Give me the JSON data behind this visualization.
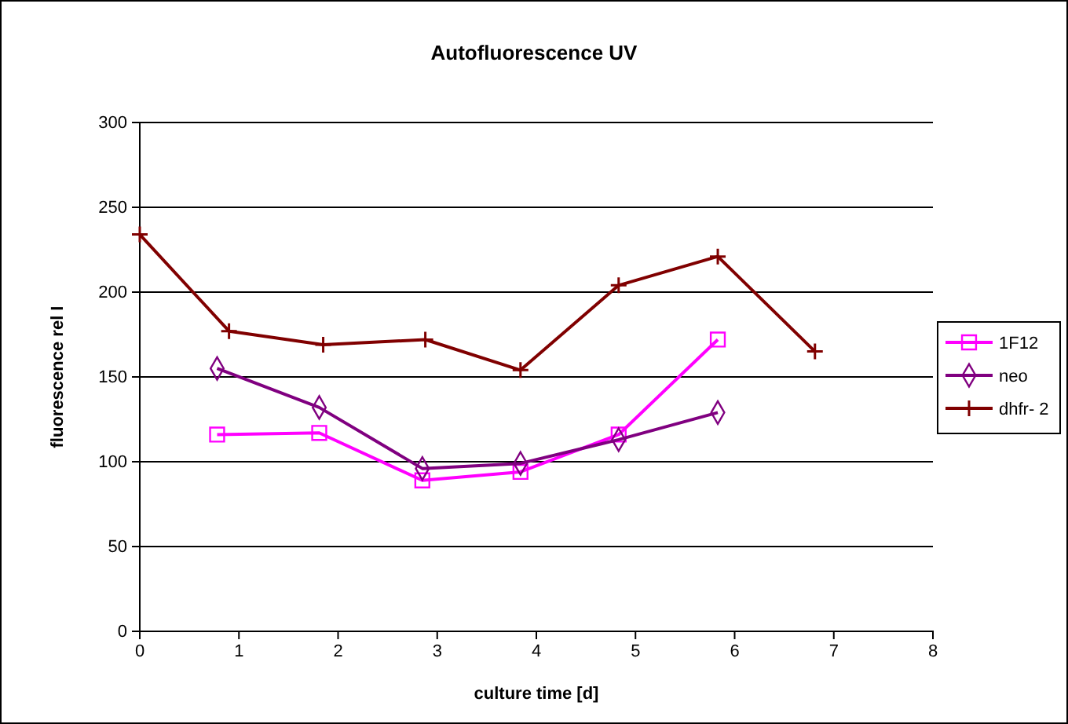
{
  "chart_data": {
    "type": "line",
    "title": "Autofluorescence UV",
    "xlabel": "culture time [d]",
    "ylabel": "fluorescence rel I",
    "xlim": [
      0,
      8
    ],
    "xticks": [
      0,
      1,
      2,
      3,
      4,
      5,
      6,
      7,
      8
    ],
    "ylim": [
      0,
      300
    ],
    "yticks": [
      0,
      50,
      100,
      150,
      200,
      250,
      300
    ],
    "grid": "y",
    "legend": "right",
    "series": [
      {
        "name": "1F12",
        "color": "#ff00ff",
        "marker": "square",
        "x": [
          0.78,
          1.81,
          2.85,
          3.84,
          4.83,
          5.83
        ],
        "values": [
          116,
          117,
          89,
          94,
          116,
          172
        ]
      },
      {
        "name": "neo",
        "color": "#800080",
        "marker": "diamond",
        "x": [
          0.78,
          1.81,
          2.85,
          3.84,
          4.83,
          5.83
        ],
        "values": [
          155,
          132,
          96,
          99,
          113,
          129
        ]
      },
      {
        "name": "dhfr- 2",
        "color": "#800000",
        "marker": "cross",
        "x": [
          0,
          0.9,
          1.85,
          2.88,
          3.84,
          4.83,
          5.83,
          6.81
        ],
        "values": [
          234,
          177,
          169,
          172,
          154,
          204,
          221,
          165
        ]
      }
    ]
  }
}
